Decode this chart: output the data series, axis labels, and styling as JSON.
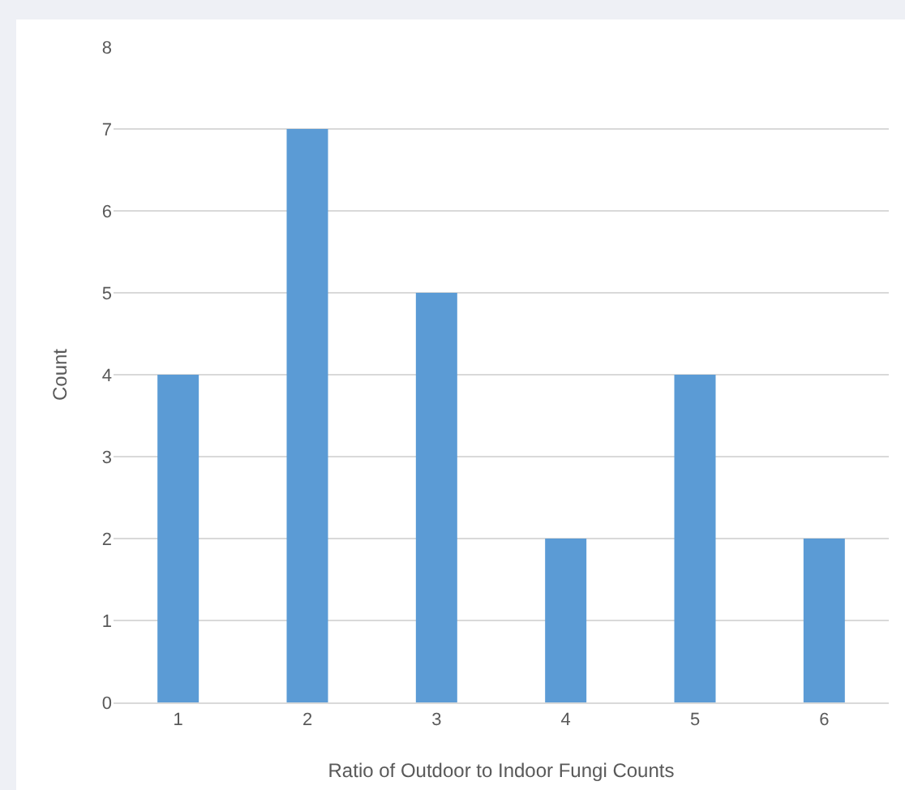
{
  "chart_data": {
    "type": "bar",
    "xlabel": "Ratio of Outdoor to Indoor Fungi Counts",
    "ylabel": "Count",
    "categories": [
      "1",
      "2",
      "3",
      "4",
      "5",
      "6"
    ],
    "values": [
      4,
      7,
      5,
      2,
      4,
      2
    ],
    "color": "#5b9bd5",
    "ylim": [
      0,
      8
    ],
    "yticks": [
      0,
      1,
      2,
      3,
      4,
      5,
      6,
      7,
      8
    ],
    "grid": "y",
    "legend": false
  }
}
